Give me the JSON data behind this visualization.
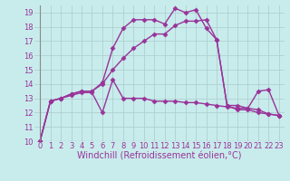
{
  "background_color": "#c8ecec",
  "grid_color": "#b0d0d0",
  "line_color": "#993399",
  "marker": "D",
  "markersize": 2.5,
  "linewidth": 1.0,
  "xlim": [
    -0.5,
    23.5
  ],
  "ylim": [
    10,
    19.5
  ],
  "yticks": [
    10,
    11,
    12,
    13,
    14,
    15,
    16,
    17,
    18,
    19
  ],
  "xticks": [
    0,
    1,
    2,
    3,
    4,
    5,
    6,
    7,
    8,
    9,
    10,
    11,
    12,
    13,
    14,
    15,
    16,
    17,
    18,
    19,
    20,
    21,
    22,
    23
  ],
  "xlabel": "Windchill (Refroidissement éolien,°C)",
  "xlabel_fontsize": 7,
  "tick_fontsize": 6,
  "series": [
    [
      10.0,
      12.8,
      13.0,
      13.2,
      13.4,
      13.4,
      12.0,
      14.3,
      13.0,
      13.0,
      13.0,
      12.8,
      12.8,
      12.8,
      12.7,
      12.7,
      12.6,
      12.5,
      12.4,
      12.3,
      12.3,
      12.2,
      11.9,
      11.8
    ],
    [
      10.0,
      12.8,
      13.0,
      13.3,
      13.5,
      13.5,
      14.1,
      16.5,
      17.9,
      18.5,
      18.5,
      18.5,
      18.2,
      19.3,
      19.0,
      19.2,
      17.9,
      17.1,
      12.5,
      12.5,
      12.3,
      13.5,
      13.6,
      11.8
    ],
    [
      10.0,
      12.8,
      13.0,
      13.3,
      13.5,
      13.5,
      14.0,
      15.0,
      15.8,
      16.5,
      17.0,
      17.5,
      17.5,
      18.1,
      18.4,
      18.4,
      18.5,
      17.1,
      12.5,
      12.2,
      12.2,
      12.0,
      11.9,
      11.8
    ]
  ]
}
